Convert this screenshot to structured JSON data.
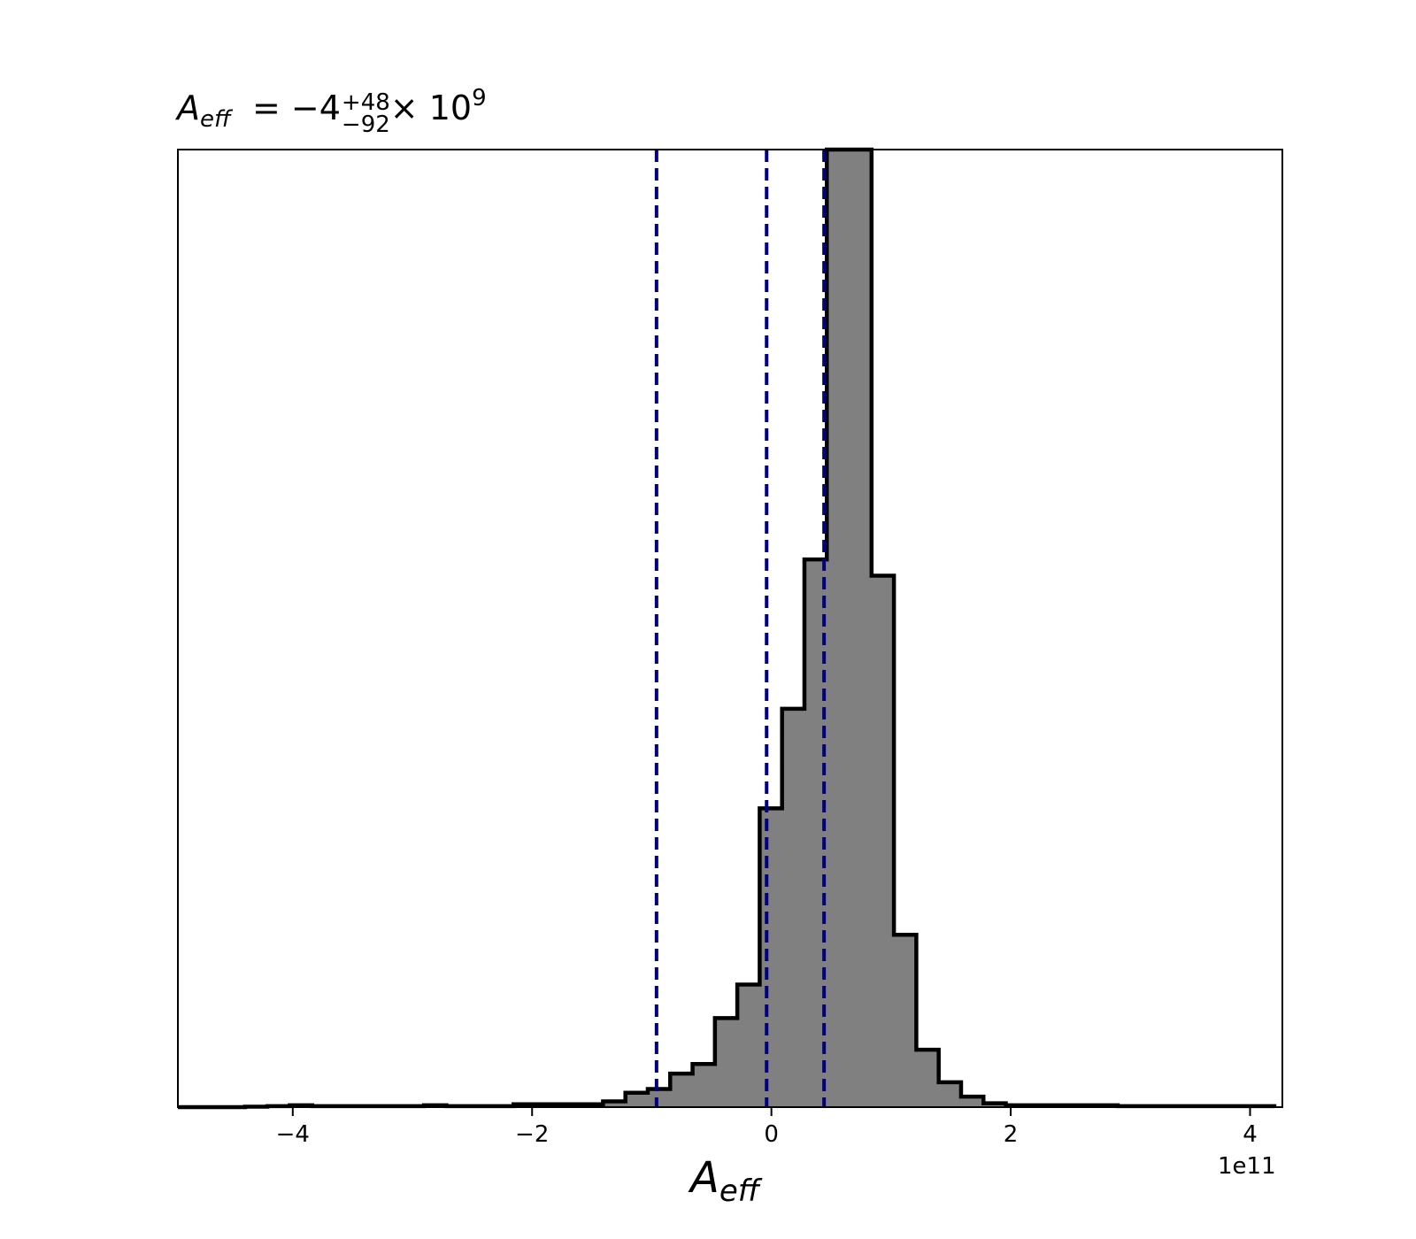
{
  "chart_data": {
    "type": "histogram",
    "title": {
      "symbol": "A",
      "subscript": "eff",
      "equals": "=",
      "value": "−4",
      "upper": "+48",
      "lower": "−92",
      "times": "× 10",
      "exponent": "9"
    },
    "xlabel": {
      "symbol": "A",
      "subscript": "eff"
    },
    "x_offset_label": "1e11",
    "x_units_multiplier": 100000000000.0,
    "xlim": [
      -4.96,
      4.27
    ],
    "ylim": [
      0,
      1.0
    ],
    "y_axis_visible": false,
    "x_ticks": [
      {
        "value": -4,
        "label": "−4"
      },
      {
        "value": -2,
        "label": "−2"
      },
      {
        "value": 0,
        "label": "0"
      },
      {
        "value": 2,
        "label": "2"
      },
      {
        "value": 4,
        "label": "4"
      }
    ],
    "fill_color": "#808080",
    "edge_color": "#000000",
    "bin_edges": [
      -4.96,
      -4.773,
      -4.586,
      -4.399,
      -4.212,
      -4.025,
      -3.838,
      -3.651,
      -3.464,
      -3.277,
      -3.09,
      -2.903,
      -2.716,
      -2.529,
      -2.342,
      -2.155,
      -1.968,
      -1.781,
      -1.594,
      -1.407,
      -1.22,
      -1.033,
      -0.846,
      -0.659,
      -0.472,
      -0.285,
      -0.098,
      0.089,
      0.276,
      0.463,
      0.65,
      0.837,
      1.024,
      1.211,
      1.398,
      1.585,
      1.772,
      1.959,
      2.146,
      2.333,
      2.52,
      2.707,
      2.894,
      3.081,
      3.268,
      3.455,
      3.642,
      3.829,
      4.016,
      4.203
    ],
    "counts": [
      0,
      0,
      0,
      0.0005,
      0.001,
      0.002,
      0.001,
      0.001,
      0.001,
      0.001,
      0.001,
      0.002,
      0.001,
      0.001,
      0.001,
      0.003,
      0.003,
      0.003,
      0.003,
      0.006,
      0.015,
      0.019,
      0.035,
      0.045,
      0.093,
      0.128,
      0.312,
      0.416,
      0.572,
      1.0,
      1.0,
      0.555,
      0.18,
      0.06,
      0.026,
      0.011,
      0.004,
      0.002,
      0.002,
      0.002,
      0.002,
      0.002,
      0.001,
      0.001,
      0.001,
      0.001,
      0.001,
      0.001,
      0.001
    ],
    "vlines": [
      {
        "x": -0.96,
        "color": "#000080",
        "style": "dashed"
      },
      {
        "x": -0.04,
        "color": "#000080",
        "style": "dashed"
      },
      {
        "x": 0.44,
        "color": "#000080",
        "style": "dashed"
      }
    ]
  }
}
